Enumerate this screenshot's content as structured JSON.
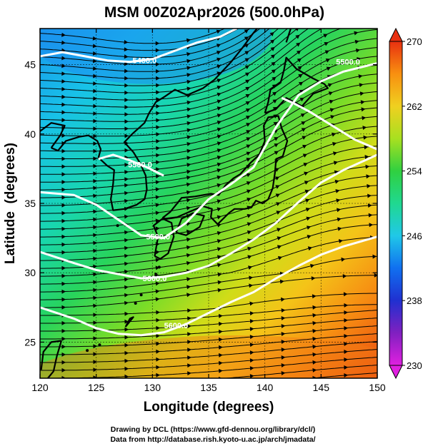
{
  "chart_data": {
    "type": "heatmap",
    "title": "MSM 00Z02Apr2026 (500.0hPa)",
    "xlabel": "Longitude (degrees)",
    "ylabel": "Latitude  (degrees)",
    "xlim": [
      120,
      150
    ],
    "ylim": [
      22.4,
      47.6
    ],
    "x_ticks": [
      120,
      125,
      130,
      135,
      140,
      145,
      150
    ],
    "y_ticks": [
      25,
      30,
      35,
      40,
      45
    ],
    "colorbar": {
      "min": 230,
      "max": 270,
      "ticks": [
        230,
        238,
        246,
        254,
        262,
        270
      ],
      "colors": [
        "#e020e0",
        "#8020c0",
        "#2030d0",
        "#1070f0",
        "#20c8e8",
        "#20d890",
        "#30d040",
        "#a8e020",
        "#f0d020",
        "#f89010",
        "#e83010"
      ]
    },
    "contours": [
      {
        "label": "5400.0",
        "points": [
          [
            120,
            45.6
          ],
          [
            122,
            45.9
          ],
          [
            124,
            45.6
          ],
          [
            126,
            45.3
          ],
          [
            128,
            45.2
          ],
          [
            130,
            45.4
          ],
          [
            132,
            46.0
          ],
          [
            134,
            46.6
          ],
          [
            136,
            47.0
          ],
          [
            137,
            47.4
          ],
          [
            137.5,
            47.6
          ]
        ],
        "labels_at": [
          [
            129.3,
            45.3
          ]
        ]
      },
      {
        "label": "5500.0",
        "points": [
          [
            120,
            35.8
          ],
          [
            123,
            35.6
          ],
          [
            125,
            34.9
          ],
          [
            127,
            33.8
          ],
          [
            129,
            32.7
          ],
          [
            131,
            32.5
          ],
          [
            133,
            33.6
          ],
          [
            135,
            35.3
          ],
          [
            137,
            36.4
          ],
          [
            139,
            37.6
          ],
          [
            141,
            40.5
          ],
          [
            143,
            42.8
          ],
          [
            145,
            43.8
          ],
          [
            147,
            44.5
          ],
          [
            150,
            45.1
          ]
        ],
        "labels_at": [
          [
            130.5,
            32.6
          ],
          [
            147.4,
            45.2
          ]
        ]
      },
      {
        "label": "5600.0",
        "points": [
          [
            120,
            31.5
          ],
          [
            123,
            30.7
          ],
          [
            125,
            30.2
          ],
          [
            127,
            29.9
          ],
          [
            129,
            29.6
          ],
          [
            131,
            29.7
          ],
          [
            133,
            30.0
          ],
          [
            135,
            30.5
          ],
          [
            137,
            31.4
          ],
          [
            139,
            32.4
          ],
          [
            141,
            33.6
          ],
          [
            143,
            35.1
          ],
          [
            145,
            36.5
          ],
          [
            147,
            37.4
          ],
          [
            150,
            38.5
          ]
        ],
        "labels_at": [
          [
            130.2,
            29.6
          ]
        ]
      },
      {
        "label": "5600.0",
        "points": [
          [
            120,
            27.5
          ],
          [
            123,
            26.7
          ],
          [
            125,
            26.0
          ],
          [
            127,
            25.6
          ],
          [
            129,
            25.5
          ],
          [
            131,
            25.7
          ],
          [
            133,
            26.3
          ],
          [
            135,
            27.1
          ],
          [
            137,
            27.9
          ],
          [
            139,
            28.6
          ],
          [
            141,
            29.6
          ],
          [
            143,
            30.5
          ],
          [
            145,
            31.3
          ],
          [
            147,
            31.9
          ],
          [
            150,
            32.6
          ]
        ],
        "labels_at": [
          [
            132.1,
            26.2
          ]
        ]
      },
      {
        "label": "5500.0",
        "points": [
          [
            125.2,
            38.2
          ],
          [
            126.5,
            38.5
          ],
          [
            128,
            38.1
          ],
          [
            129.5,
            37.6
          ],
          [
            131,
            37.0
          ]
        ],
        "labels_at": [
          [
            128.9,
            37.8
          ]
        ]
      },
      {
        "label": "",
        "points": [
          [
            141.5,
            42.6
          ],
          [
            142.6,
            42.2
          ],
          [
            144,
            41.6
          ],
          [
            146,
            40.6
          ],
          [
            148,
            39.6
          ],
          [
            150,
            38.9
          ]
        ],
        "labels_at": []
      }
    ]
  },
  "credits": {
    "line1": "Drawing by DCL (https://www.gfd-dennou.org/library/dcl/)",
    "line2": "Data from http://database.rish.kyoto-u.ac.jp/arch/jmadata/"
  }
}
